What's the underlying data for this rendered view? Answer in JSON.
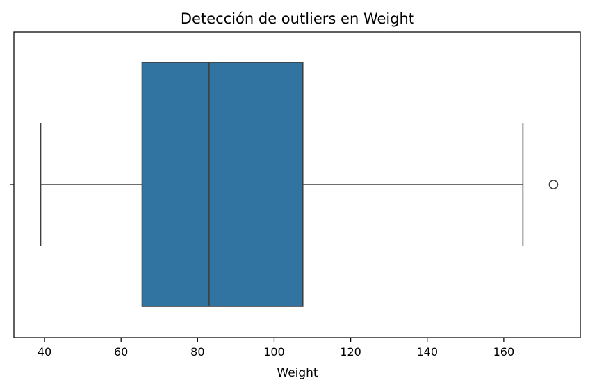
{
  "chart_data": {
    "type": "box",
    "title": "Detección de outliers en Weight",
    "xlabel": "Weight",
    "ylabel": "",
    "xlim": [
      32,
      180
    ],
    "xticks": [
      40,
      60,
      80,
      100,
      120,
      140,
      160
    ],
    "xtick_labels": [
      "40",
      "60",
      "80",
      "100",
      "120",
      "140",
      "160"
    ],
    "grid": false,
    "orientation": "horizontal",
    "series": [
      {
        "whisker_low": 39,
        "q1": 65.5,
        "median": 83,
        "q3": 107.5,
        "whisker_high": 165,
        "outliers": [
          173
        ]
      }
    ],
    "colors": {
      "box_fill": "#3274a1",
      "box_edge": "#3f3f3f",
      "axis": "#000000"
    }
  }
}
